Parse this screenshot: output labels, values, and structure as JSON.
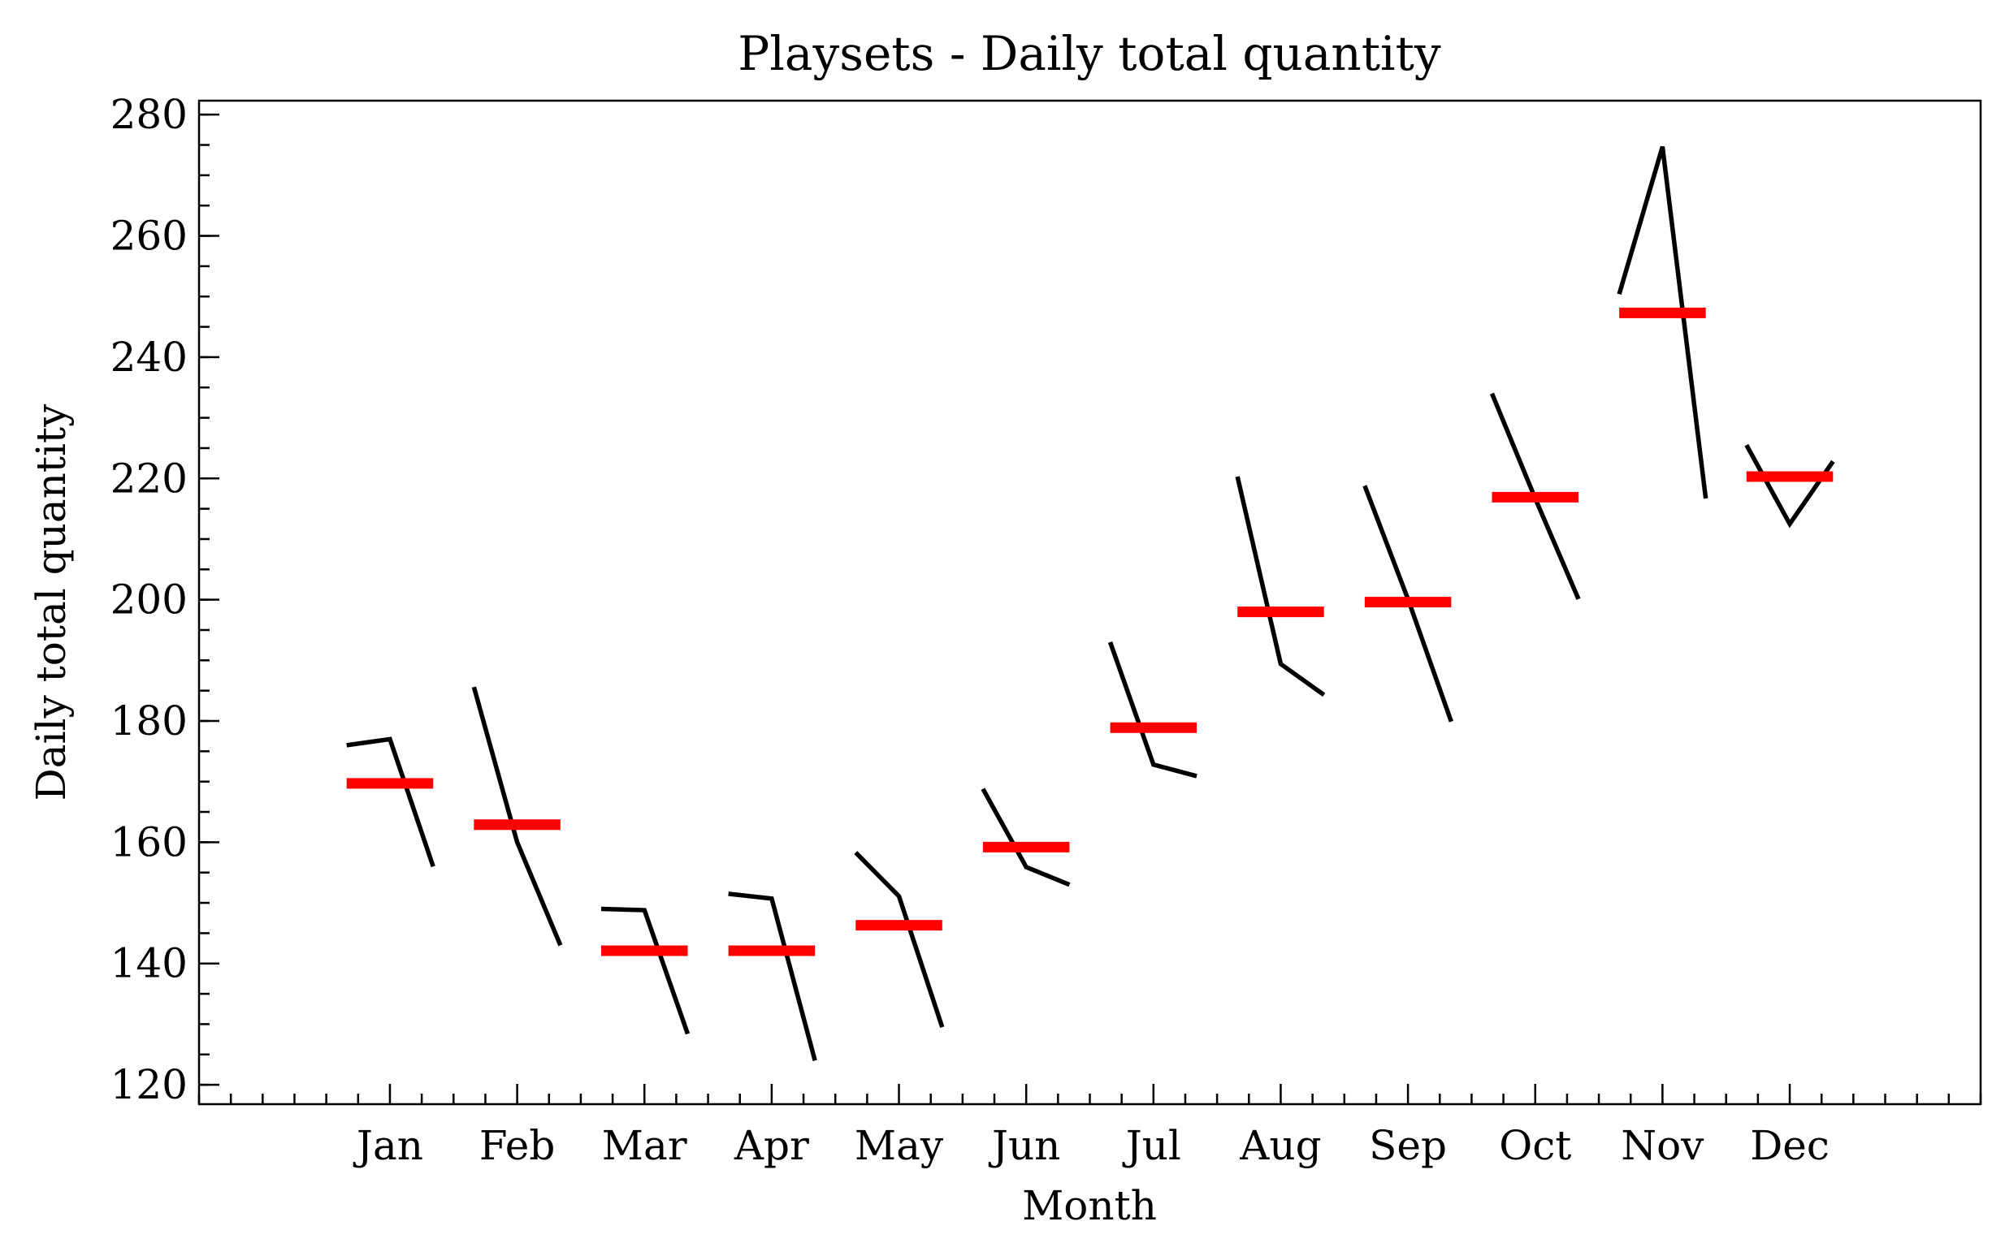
{
  "chart_data": {
    "type": "line",
    "title": "Playsets - Daily total quantity",
    "xlabel": "Month",
    "ylabel": "Daily total quantity",
    "categories": [
      "Jan",
      "Feb",
      "Mar",
      "Apr",
      "May",
      "Jun",
      "Jul",
      "Aug",
      "Sep",
      "Oct",
      "Nov",
      "Dec"
    ],
    "values": [
      [
        176.0,
        177.0,
        156.0
      ],
      [
        185.6,
        160.0,
        143.0
      ],
      [
        149.0,
        148.8,
        128.4
      ],
      [
        151.5,
        150.7,
        124.0
      ],
      [
        158.3,
        151.1,
        129.5
      ],
      [
        168.8,
        155.9,
        153.0
      ],
      [
        193.0,
        172.8,
        170.9
      ],
      [
        220.3,
        189.4,
        184.3
      ],
      [
        218.8,
        200.1,
        179.9
      ],
      [
        234.0,
        216.7,
        200.1
      ],
      [
        250.4,
        274.7,
        216.7
      ],
      [
        225.5,
        212.5,
        222.8
      ]
    ],
    "means": [
      169.7,
      162.9,
      142.1,
      142.1,
      146.3,
      159.2,
      178.9,
      198.0,
      199.6,
      216.9,
      247.3,
      220.3
    ],
    "color": "#000000",
    "mean_color": "#ff0000",
    "ylim": [
      116.8,
      282.3
    ],
    "yticks": [
      120,
      140,
      160,
      180,
      200,
      220,
      240,
      260,
      280
    ]
  }
}
